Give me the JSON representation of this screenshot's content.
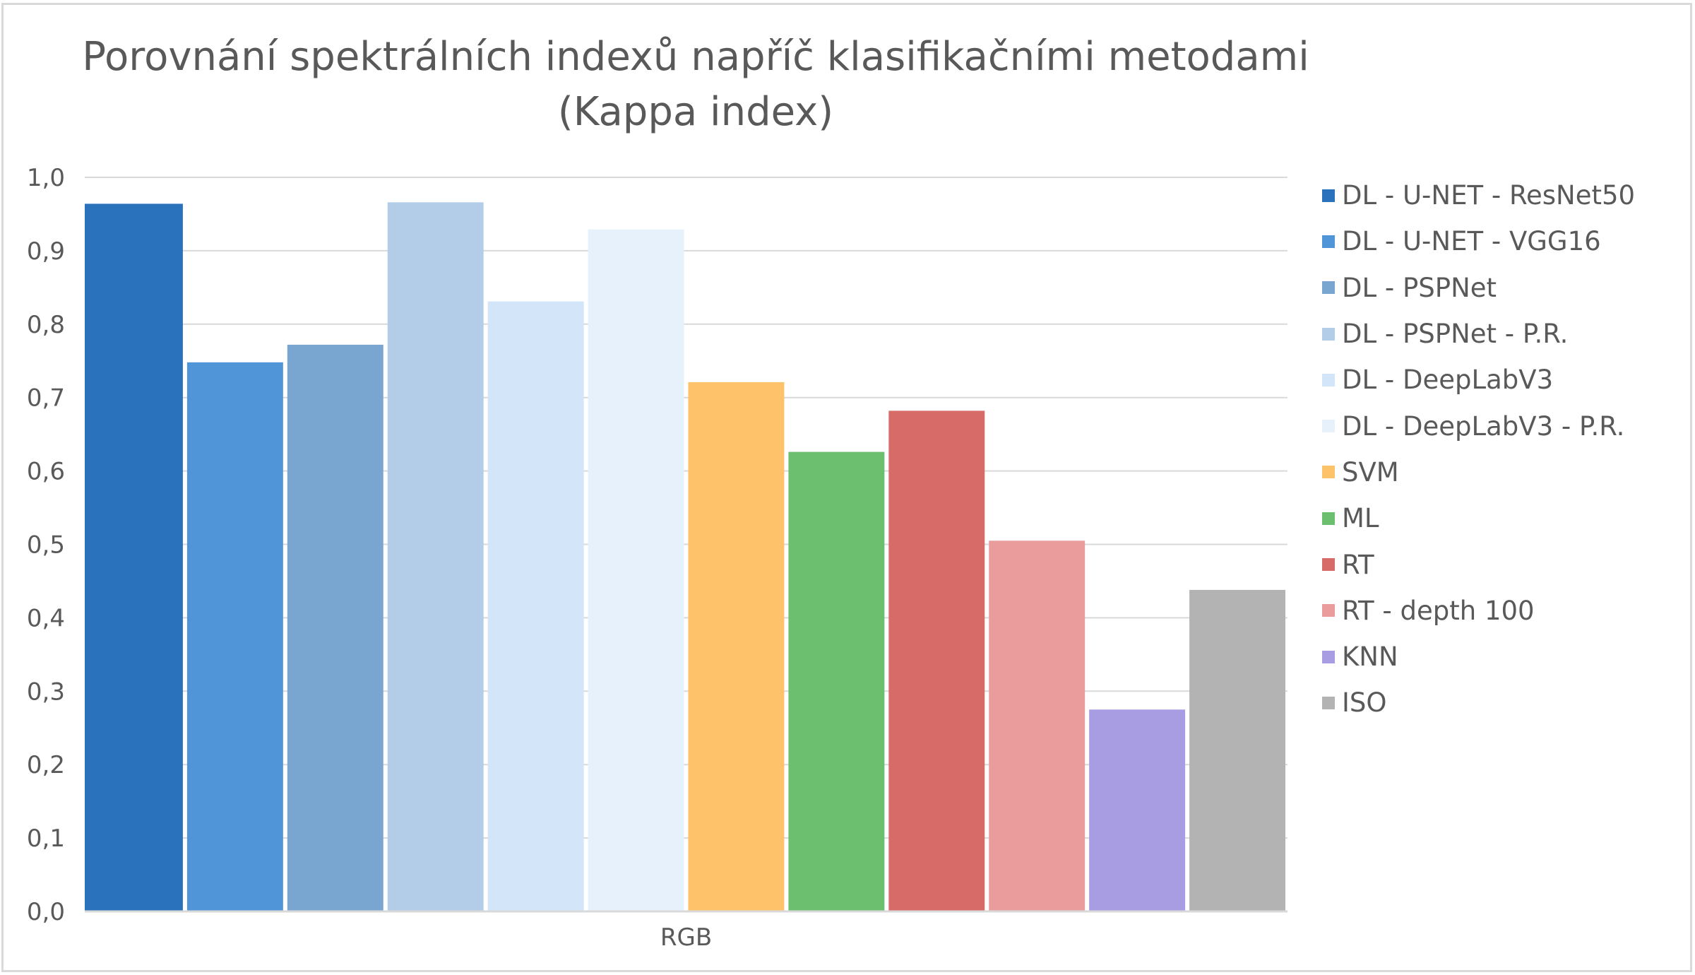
{
  "chart_data": {
    "type": "bar",
    "title_lines": [
      "Porovnání spektrálních indexů napříč klasifikačními metodami",
      "(Kappa index)"
    ],
    "categories": [
      "RGB"
    ],
    "series": [
      {
        "name": "DL - U-NET - ResNet50",
        "values": [
          0.964
        ],
        "color": "#2a72bb"
      },
      {
        "name": "DL - U-NET - VGG16",
        "values": [
          0.748
        ],
        "color": "#4f95d8"
      },
      {
        "name": "DL - PSPNet",
        "values": [
          0.772
        ],
        "color": "#79a6d1"
      },
      {
        "name": "DL - PSPNet - P.R.",
        "values": [
          0.966
        ],
        "color": "#b3cde9"
      },
      {
        "name": "DL - DeepLabV3",
        "values": [
          0.831
        ],
        "color": "#d3e6f9"
      },
      {
        "name": "DL - DeepLabV3 - P.R.",
        "values": [
          0.929
        ],
        "color": "#e6f1fc"
      },
      {
        "name": "SVM",
        "values": [
          0.721
        ],
        "color": "#fdc26a"
      },
      {
        "name": "ML",
        "values": [
          0.626
        ],
        "color": "#6cbf6e"
      },
      {
        "name": "RT",
        "values": [
          0.682
        ],
        "color": "#d66b68"
      },
      {
        "name": "RT - depth 100",
        "values": [
          0.505
        ],
        "color": "#ea9c9c"
      },
      {
        "name": "KNN",
        "values": [
          0.275
        ],
        "color": "#a89ce2"
      },
      {
        "name": "ISO",
        "values": [
          0.438
        ],
        "color": "#b3b3b3"
      }
    ],
    "yticks": [
      "0,0",
      "0,1",
      "0,2",
      "0,3",
      "0,4",
      "0,5",
      "0,6",
      "0,7",
      "0,8",
      "0,9",
      "1,0"
    ],
    "ylim": [
      0,
      1
    ],
    "grid": true,
    "legend_position": "right",
    "gridline_color": "#d9d9d9",
    "axis_color": "#d9d9d9"
  }
}
